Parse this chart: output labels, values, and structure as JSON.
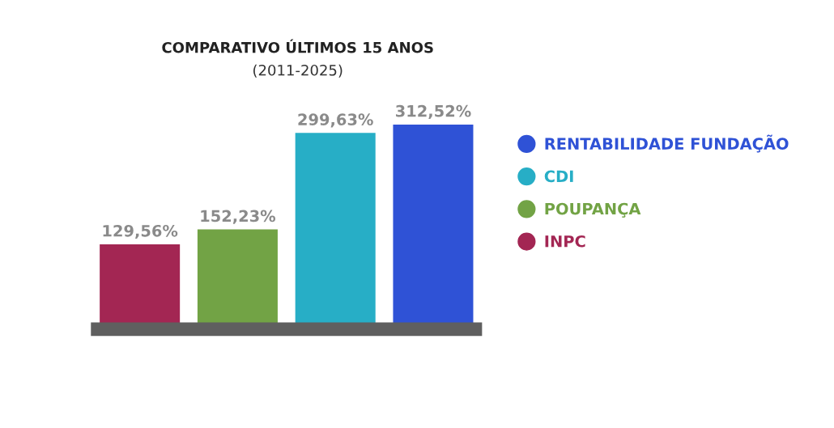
{
  "chart_data": {
    "type": "bar",
    "title": "COMPARATIVO ÚLTIMOS 15 ANOS",
    "subtitle": "(2011-2025)",
    "categories": [
      null
    ],
    "series": [
      {
        "name": "INPC",
        "color": "#a32653",
        "values": [
          129.56
        ],
        "value_labels": [
          "129,56%"
        ]
      },
      {
        "name": "POUPANÇA",
        "color": "#72a345",
        "values": [
          152.23
        ],
        "value_labels": [
          "152,23%"
        ]
      },
      {
        "name": "CDI",
        "color": "#27aec6",
        "values": [
          299.63
        ],
        "value_labels": [
          "299,63%"
        ]
      },
      {
        "name": "RENTABILIDADE FUNDAÇÃO",
        "color": "#2f52d6",
        "values": [
          312.52
        ],
        "value_labels": [
          "312,52%"
        ]
      }
    ],
    "tick_labels": false,
    "legend": "right",
    "marker": "circle",
    "grid": false
  }
}
